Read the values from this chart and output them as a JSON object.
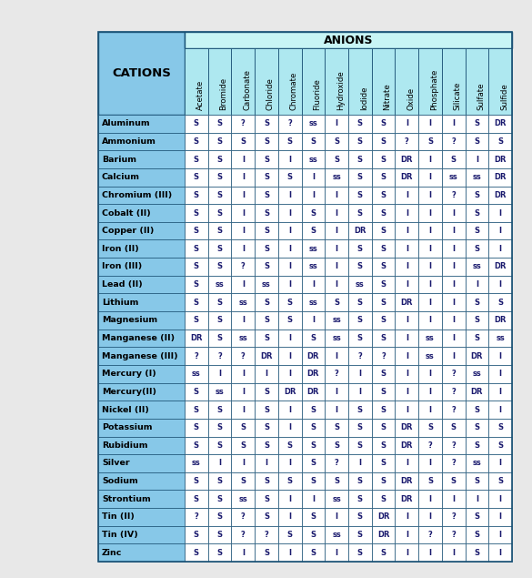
{
  "title": "ANIONS",
  "cation_header": "CATIONS",
  "anion_headers": [
    "Acetate",
    "Bromide",
    "Carbonate",
    "Chloride",
    "Chromate",
    "Fluoride",
    "Hydroxide",
    "Iodide",
    "Nitrate",
    "Oxide",
    "Phosphate",
    "Silicate",
    "Sulfate",
    "Sulfide"
  ],
  "cations": [
    "Aluminum",
    "Ammonium",
    "Barium",
    "Calcium",
    "Chromium (III)",
    "Cobalt (II)",
    "Copper (II)",
    "Iron (II)",
    "Iron (III)",
    "Lead (II)",
    "Lithium",
    "Magnesium",
    "Manganese (II)",
    "Manganese (III)",
    "Mercury (I)",
    "Mercury(II)",
    "Nickel (II)",
    "Potassium",
    "Rubidium",
    "Silver",
    "Sodium",
    "Strontium",
    "Tin (II)",
    "Tin (IV)",
    "Zinc"
  ],
  "data": [
    [
      "S",
      "S",
      "?",
      "S",
      "?",
      "ss",
      "I",
      "S",
      "S",
      "I",
      "I",
      "I",
      "S",
      "DR"
    ],
    [
      "S",
      "S",
      "S",
      "S",
      "S",
      "S",
      "S",
      "S",
      "S",
      "?",
      "S",
      "?",
      "S",
      "S"
    ],
    [
      "S",
      "S",
      "I",
      "S",
      "I",
      "ss",
      "S",
      "S",
      "S",
      "DR",
      "I",
      "S",
      "I",
      "DR"
    ],
    [
      "S",
      "S",
      "I",
      "S",
      "S",
      "I",
      "ss",
      "S",
      "S",
      "DR",
      "I",
      "ss",
      "ss",
      "DR"
    ],
    [
      "S",
      "S",
      "I",
      "S",
      "I",
      "I",
      "I",
      "S",
      "S",
      "I",
      "I",
      "?",
      "S",
      "DR"
    ],
    [
      "S",
      "S",
      "I",
      "S",
      "I",
      "S",
      "I",
      "S",
      "S",
      "I",
      "I",
      "I",
      "S",
      "I"
    ],
    [
      "S",
      "S",
      "I",
      "S",
      "I",
      "S",
      "I",
      "DR",
      "S",
      "I",
      "I",
      "I",
      "S",
      "I"
    ],
    [
      "S",
      "S",
      "I",
      "S",
      "I",
      "ss",
      "I",
      "S",
      "S",
      "I",
      "I",
      "I",
      "S",
      "I"
    ],
    [
      "S",
      "S",
      "?",
      "S",
      "I",
      "ss",
      "I",
      "S",
      "S",
      "I",
      "I",
      "I",
      "ss",
      "DR"
    ],
    [
      "S",
      "ss",
      "I",
      "ss",
      "I",
      "I",
      "I",
      "ss",
      "S",
      "I",
      "I",
      "I",
      "I",
      "I"
    ],
    [
      "S",
      "S",
      "ss",
      "S",
      "S",
      "ss",
      "S",
      "S",
      "S",
      "DR",
      "I",
      "I",
      "S",
      "S"
    ],
    [
      "S",
      "S",
      "I",
      "S",
      "S",
      "I",
      "ss",
      "S",
      "S",
      "I",
      "I",
      "I",
      "S",
      "DR"
    ],
    [
      "DR",
      "S",
      "ss",
      "S",
      "I",
      "S",
      "ss",
      "S",
      "S",
      "I",
      "ss",
      "I",
      "S",
      "ss"
    ],
    [
      "?",
      "?",
      "?",
      "DR",
      "I",
      "DR",
      "I",
      "?",
      "?",
      "I",
      "ss",
      "I",
      "DR",
      "I"
    ],
    [
      "ss",
      "I",
      "I",
      "I",
      "I",
      "DR",
      "?",
      "I",
      "S",
      "I",
      "I",
      "?",
      "ss",
      "I"
    ],
    [
      "S",
      "ss",
      "I",
      "S",
      "DR",
      "DR",
      "I",
      "I",
      "S",
      "I",
      "I",
      "?",
      "DR",
      "I"
    ],
    [
      "S",
      "S",
      "I",
      "S",
      "I",
      "S",
      "I",
      "S",
      "S",
      "I",
      "I",
      "?",
      "S",
      "I"
    ],
    [
      "S",
      "S",
      "S",
      "S",
      "I",
      "S",
      "S",
      "S",
      "S",
      "DR",
      "S",
      "S",
      "S",
      "S"
    ],
    [
      "S",
      "S",
      "S",
      "S",
      "S",
      "S",
      "S",
      "S",
      "S",
      "DR",
      "?",
      "?",
      "S",
      "S"
    ],
    [
      "ss",
      "I",
      "I",
      "I",
      "I",
      "S",
      "?",
      "I",
      "S",
      "I",
      "I",
      "?",
      "ss",
      "I"
    ],
    [
      "S",
      "S",
      "S",
      "S",
      "S",
      "S",
      "S",
      "S",
      "S",
      "DR",
      "S",
      "S",
      "S",
      "S"
    ],
    [
      "S",
      "S",
      "ss",
      "S",
      "I",
      "I",
      "ss",
      "S",
      "S",
      "DR",
      "I",
      "I",
      "I",
      "I"
    ],
    [
      "?",
      "S",
      "?",
      "S",
      "I",
      "S",
      "I",
      "S",
      "DR",
      "I",
      "I",
      "?",
      "S",
      "I"
    ],
    [
      "S",
      "S",
      "?",
      "?",
      "S",
      "S",
      "ss",
      "S",
      "DR",
      "I",
      "?",
      "?",
      "S",
      "I"
    ],
    [
      "S",
      "S",
      "I",
      "S",
      "I",
      "S",
      "I",
      "S",
      "S",
      "I",
      "I",
      "I",
      "S",
      "I"
    ]
  ],
  "bg_anions_title": "#c8f5f5",
  "bg_col_headers": "#aee8f0",
  "bg_cation_col": "#87c8e8",
  "bg_data": "#ffffff",
  "border_color": "#1a5276",
  "outer_bg": "#e8e8e8",
  "table_border_color": "#1a5276",
  "cation_text_color": "#000000",
  "data_text_color": "#1a1a6e"
}
